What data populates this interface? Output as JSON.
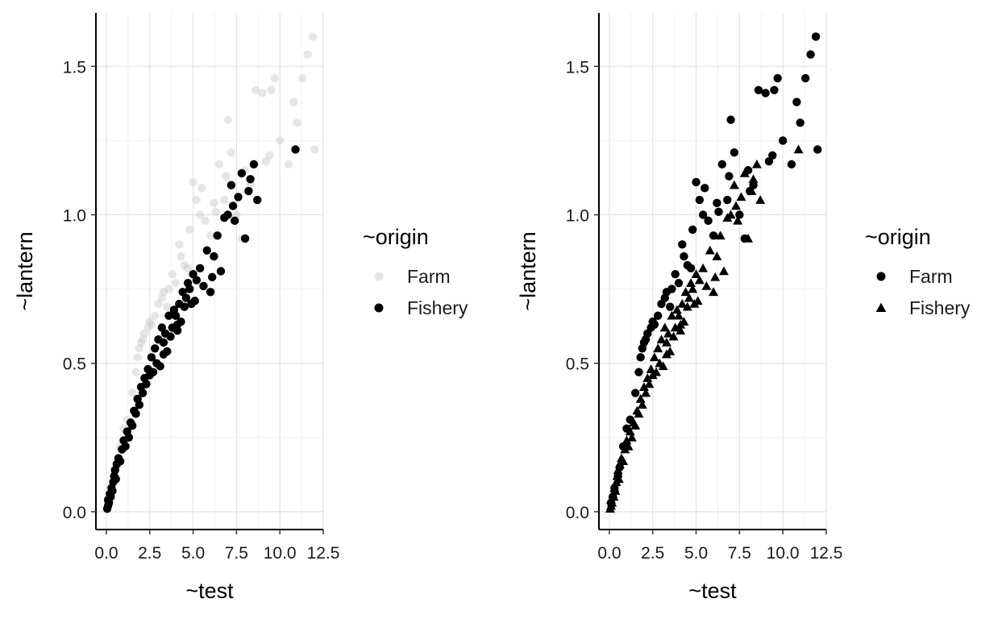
{
  "chart_data": [
    {
      "type": "scatter",
      "title": "",
      "xlabel": "~test",
      "ylabel": "~lantern",
      "xlim": [
        -0.6,
        12.5
      ],
      "ylim": [
        -0.06,
        1.68
      ],
      "xticks": [
        0.0,
        2.5,
        5.0,
        7.5,
        10.0,
        12.5
      ],
      "xtick_labels": [
        "0.0",
        "2.5",
        "5.0",
        "7.5",
        "10.0",
        "12.5"
      ],
      "yticks": [
        0.0,
        0.5,
        1.0,
        1.5
      ],
      "ytick_labels": [
        "0.0",
        "0.5",
        "1.0",
        "1.5"
      ],
      "grid": true,
      "legend": {
        "title": "~origin",
        "position": "right",
        "entries": [
          {
            "label": "Farm",
            "shape": "circle",
            "color": "#c8c8c8",
            "opacity": 0.45
          },
          {
            "label": "Fishery",
            "shape": "circle",
            "color": "#000000",
            "opacity": 1.0
          }
        ]
      },
      "series": [
        {
          "name": "Farm",
          "marker": "circle",
          "color": "#c8c8c8",
          "opacity": 0.45,
          "x": [
            0.1,
            0.2,
            0.3,
            0.5,
            0.6,
            0.8,
            1.0,
            1.2,
            1.5,
            1.7,
            1.8,
            2.0,
            2.2,
            2.4,
            2.6,
            2.8,
            3.0,
            3.3,
            3.5,
            3.8,
            4.0,
            4.3,
            4.5,
            4.8,
            5.0,
            5.2,
            5.5,
            5.7,
            6.0,
            6.3,
            6.5,
            6.8,
            7.0,
            7.2,
            7.5,
            7.8,
            8.0,
            8.3,
            8.6,
            9.0,
            9.2,
            9.5,
            9.7,
            10.0,
            10.5,
            10.8,
            11.0,
            11.3,
            11.6,
            11.9,
            12.0,
            1.9,
            2.1,
            2.5,
            3.2,
            3.6,
            4.2,
            4.7,
            5.4,
            6.2,
            6.9,
            8.1,
            9.4
          ],
          "y": [
            0.03,
            0.05,
            0.08,
            0.12,
            0.15,
            0.22,
            0.28,
            0.31,
            0.4,
            0.47,
            0.52,
            0.57,
            0.6,
            0.62,
            0.63,
            0.66,
            0.7,
            0.74,
            0.69,
            0.8,
            0.77,
            0.86,
            0.83,
            0.95,
            1.11,
            1.05,
            1.09,
            0.98,
            0.93,
            1.01,
            1.17,
            1.05,
            1.32,
            1.21,
            1.0,
            0.92,
            1.15,
            1.1,
            1.42,
            1.41,
            1.18,
            1.42,
            1.46,
            1.25,
            1.17,
            1.38,
            1.31,
            1.46,
            1.54,
            1.6,
            1.22,
            0.55,
            0.58,
            0.64,
            0.72,
            0.75,
            0.9,
            0.82,
            1.0,
            1.04,
            1.13,
            1.08,
            1.2
          ]
        },
        {
          "name": "Fishery",
          "marker": "circle",
          "color": "#000000",
          "opacity": 1.0,
          "x": [
            0.05,
            0.1,
            0.1,
            0.15,
            0.2,
            0.25,
            0.3,
            0.35,
            0.4,
            0.45,
            0.5,
            0.55,
            0.6,
            0.7,
            0.8,
            0.9,
            1.0,
            1.1,
            1.2,
            1.3,
            1.4,
            1.5,
            1.6,
            1.7,
            1.8,
            1.9,
            2.0,
            2.1,
            2.2,
            2.3,
            2.4,
            2.5,
            2.6,
            2.7,
            2.8,
            2.9,
            3.0,
            3.1,
            3.2,
            3.3,
            3.4,
            3.5,
            3.6,
            3.7,
            3.8,
            3.9,
            4.0,
            4.1,
            4.2,
            4.3,
            4.4,
            4.5,
            4.6,
            4.7,
            4.8,
            4.9,
            5.0,
            5.2,
            5.4,
            5.6,
            5.8,
            6.0,
            6.2,
            6.4,
            6.6,
            6.8,
            7.0,
            7.2,
            7.4,
            7.6,
            7.8,
            8.0,
            8.2,
            8.5,
            8.7,
            10.9,
            3.3,
            4.1,
            5.1,
            6.1,
            7.3,
            8.3
          ],
          "y": [
            0.01,
            0.02,
            0.04,
            0.03,
            0.06,
            0.05,
            0.08,
            0.07,
            0.1,
            0.12,
            0.14,
            0.11,
            0.16,
            0.18,
            0.17,
            0.21,
            0.24,
            0.22,
            0.27,
            0.25,
            0.3,
            0.29,
            0.34,
            0.33,
            0.38,
            0.36,
            0.42,
            0.4,
            0.45,
            0.43,
            0.48,
            0.46,
            0.52,
            0.47,
            0.55,
            0.5,
            0.58,
            0.49,
            0.62,
            0.53,
            0.6,
            0.54,
            0.66,
            0.59,
            0.62,
            0.68,
            0.66,
            0.61,
            0.7,
            0.64,
            0.74,
            0.69,
            0.72,
            0.77,
            0.75,
            0.7,
            0.8,
            0.78,
            0.82,
            0.76,
            0.88,
            0.74,
            0.86,
            0.93,
            0.81,
            0.99,
            1.0,
            1.1,
            0.98,
            1.06,
            1.14,
            0.92,
            1.08,
            1.17,
            1.05,
            1.22,
            0.57,
            0.63,
            0.71,
            0.79,
            1.03,
            1.12
          ]
        }
      ]
    },
    {
      "type": "scatter",
      "title": "",
      "xlabel": "~test",
      "ylabel": "~lantern",
      "xlim": [
        -0.6,
        12.5
      ],
      "ylim": [
        -0.06,
        1.68
      ],
      "xticks": [
        0.0,
        2.5,
        5.0,
        7.5,
        10.0,
        12.5
      ],
      "xtick_labels": [
        "0.0",
        "2.5",
        "5.0",
        "7.5",
        "10.0",
        "12.5"
      ],
      "yticks": [
        0.0,
        0.5,
        1.0,
        1.5
      ],
      "ytick_labels": [
        "0.0",
        "0.5",
        "1.0",
        "1.5"
      ],
      "grid": true,
      "legend": {
        "title": "~origin",
        "position": "right",
        "entries": [
          {
            "label": "Farm",
            "shape": "circle",
            "color": "#000000",
            "opacity": 1.0
          },
          {
            "label": "Fishery",
            "shape": "triangle",
            "color": "#000000",
            "opacity": 1.0
          }
        ]
      },
      "series": [
        {
          "name": "Farm",
          "marker": "circle",
          "color": "#000000",
          "opacity": 1.0,
          "x": [
            0.1,
            0.2,
            0.3,
            0.5,
            0.6,
            0.8,
            1.0,
            1.2,
            1.5,
            1.7,
            1.8,
            2.0,
            2.2,
            2.4,
            2.6,
            2.8,
            3.0,
            3.3,
            3.5,
            3.8,
            4.0,
            4.3,
            4.5,
            4.8,
            5.0,
            5.2,
            5.5,
            5.7,
            6.0,
            6.3,
            6.5,
            6.8,
            7.0,
            7.2,
            7.5,
            7.8,
            8.0,
            8.3,
            8.6,
            9.0,
            9.2,
            9.5,
            9.7,
            10.0,
            10.5,
            10.8,
            11.0,
            11.3,
            11.6,
            11.9,
            12.0,
            1.9,
            2.1,
            2.5,
            3.2,
            3.6,
            4.2,
            4.7,
            5.4,
            6.2,
            6.9,
            8.1,
            9.4
          ],
          "y": [
            0.03,
            0.05,
            0.08,
            0.12,
            0.15,
            0.22,
            0.28,
            0.31,
            0.4,
            0.47,
            0.52,
            0.57,
            0.6,
            0.62,
            0.63,
            0.66,
            0.7,
            0.74,
            0.69,
            0.8,
            0.77,
            0.86,
            0.83,
            0.95,
            1.11,
            1.05,
            1.09,
            0.98,
            0.93,
            1.01,
            1.17,
            1.05,
            1.32,
            1.21,
            1.0,
            0.92,
            1.15,
            1.1,
            1.42,
            1.41,
            1.18,
            1.42,
            1.46,
            1.25,
            1.17,
            1.38,
            1.31,
            1.46,
            1.54,
            1.6,
            1.22,
            0.55,
            0.58,
            0.64,
            0.72,
            0.75,
            0.9,
            0.82,
            1.0,
            1.04,
            1.13,
            1.08,
            1.2
          ]
        },
        {
          "name": "Fishery",
          "marker": "triangle",
          "color": "#000000",
          "opacity": 1.0,
          "x": [
            0.05,
            0.1,
            0.1,
            0.15,
            0.2,
            0.25,
            0.3,
            0.35,
            0.4,
            0.45,
            0.5,
            0.55,
            0.6,
            0.7,
            0.8,
            0.9,
            1.0,
            1.1,
            1.2,
            1.3,
            1.4,
            1.5,
            1.6,
            1.7,
            1.8,
            1.9,
            2.0,
            2.1,
            2.2,
            2.3,
            2.4,
            2.5,
            2.6,
            2.7,
            2.8,
            2.9,
            3.0,
            3.1,
            3.2,
            3.3,
            3.4,
            3.5,
            3.6,
            3.7,
            3.8,
            3.9,
            4.0,
            4.1,
            4.2,
            4.3,
            4.4,
            4.5,
            4.6,
            4.7,
            4.8,
            4.9,
            5.0,
            5.2,
            5.4,
            5.6,
            5.8,
            6.0,
            6.2,
            6.4,
            6.6,
            6.8,
            7.0,
            7.2,
            7.4,
            7.6,
            7.8,
            8.0,
            8.2,
            8.5,
            8.7,
            10.9,
            3.3,
            4.1,
            5.1,
            6.1,
            7.3,
            8.3
          ],
          "y": [
            0.01,
            0.02,
            0.04,
            0.03,
            0.06,
            0.05,
            0.08,
            0.07,
            0.1,
            0.12,
            0.14,
            0.11,
            0.16,
            0.18,
            0.17,
            0.21,
            0.24,
            0.22,
            0.27,
            0.25,
            0.3,
            0.29,
            0.34,
            0.33,
            0.38,
            0.36,
            0.42,
            0.4,
            0.45,
            0.43,
            0.48,
            0.46,
            0.52,
            0.47,
            0.55,
            0.5,
            0.58,
            0.49,
            0.62,
            0.53,
            0.6,
            0.54,
            0.66,
            0.59,
            0.62,
            0.68,
            0.66,
            0.61,
            0.7,
            0.64,
            0.74,
            0.69,
            0.72,
            0.77,
            0.75,
            0.7,
            0.8,
            0.78,
            0.82,
            0.76,
            0.88,
            0.74,
            0.86,
            0.93,
            0.81,
            0.99,
            1.0,
            1.1,
            0.98,
            1.06,
            1.14,
            0.92,
            1.08,
            1.17,
            1.05,
            1.22,
            0.57,
            0.63,
            0.71,
            0.79,
            1.03,
            1.12
          ]
        }
      ]
    }
  ]
}
